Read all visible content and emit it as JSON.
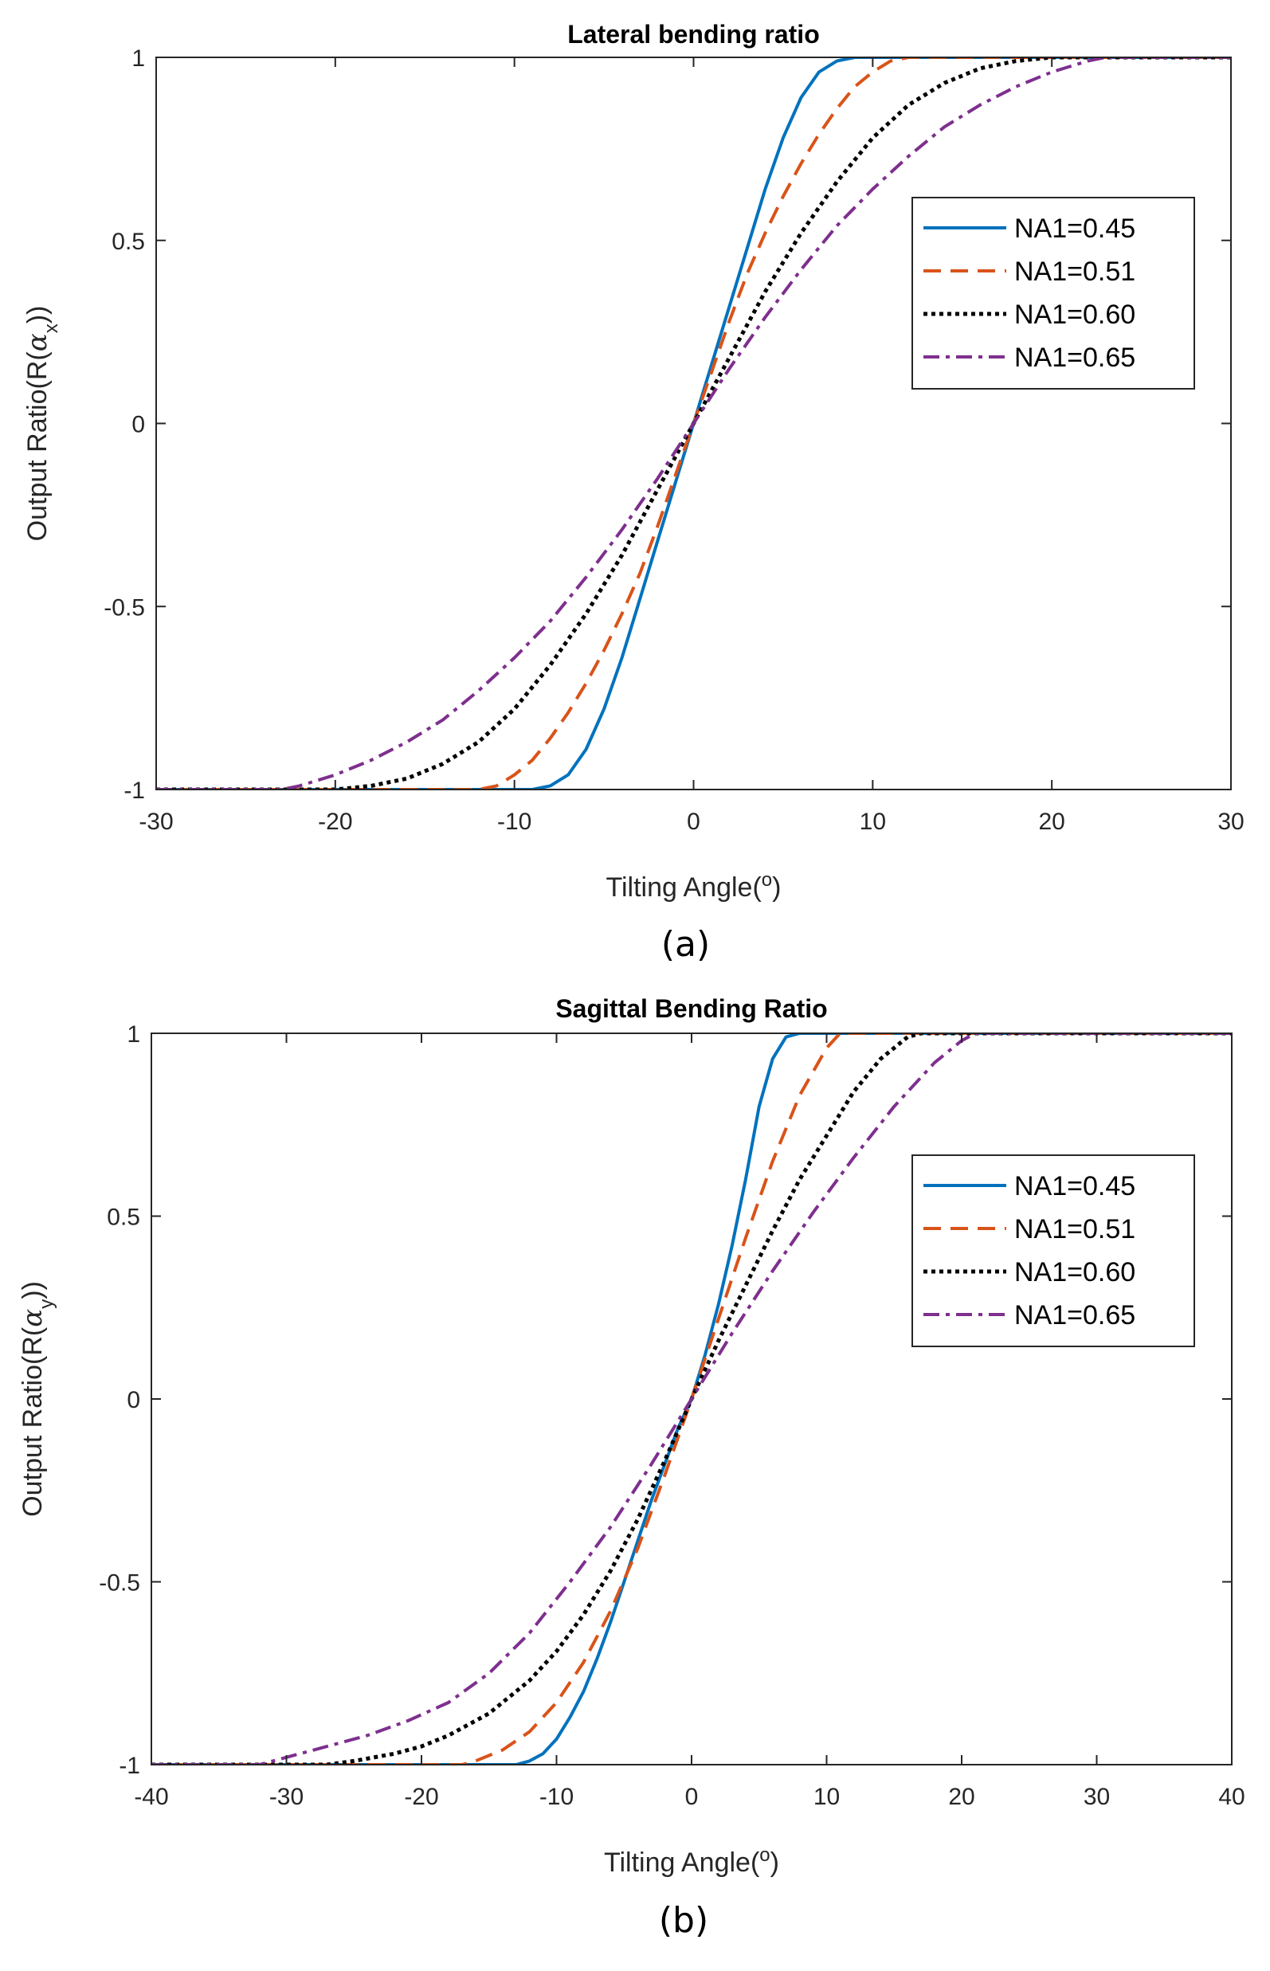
{
  "colors": {
    "na045": "#0072BD",
    "na051": "#D95319",
    "na060": "#000000",
    "na065": "#7E2F8E",
    "axis": "#262626",
    "text": "#262626"
  },
  "chart_data": [
    {
      "type": "line",
      "title": "Lateral bending ratio",
      "xlabel": "Tilting Angle(",
      "xlabel_sup": "o",
      "xlabel_end": ")",
      "ylabel": "Output Ratio(R(",
      "ylabel_greek": "α",
      "ylabel_sub": "x",
      "ylabel_end": "))",
      "caption": "(a)",
      "xlim": [
        -30,
        30
      ],
      "ylim": [
        -1,
        1
      ],
      "xticks": [
        -30,
        -20,
        -10,
        0,
        10,
        20,
        30
      ],
      "yticks": [
        -1,
        -0.5,
        0,
        0.5,
        1
      ],
      "legend_position": "upper-right",
      "series": [
        {
          "name": "NA1=0.45",
          "style": "solid",
          "color_key": "na045",
          "x": [
            -30,
            -9,
            -8,
            -7,
            -6,
            -5,
            -4,
            -3,
            -2,
            -1,
            0,
            1,
            2,
            3,
            4,
            5,
            6,
            7,
            8,
            9,
            30
          ],
          "y": [
            -1,
            -1,
            -0.99,
            -0.96,
            -0.89,
            -0.78,
            -0.64,
            -0.48,
            -0.32,
            -0.16,
            0,
            0.16,
            0.32,
            0.48,
            0.64,
            0.78,
            0.89,
            0.96,
            0.99,
            1,
            1
          ]
        },
        {
          "name": "NA1=0.51",
          "style": "dashed",
          "color_key": "na051",
          "x": [
            -30,
            -12,
            -11,
            -10,
            -9,
            -8,
            -7,
            -6,
            -5,
            -4,
            -3,
            -2,
            -1,
            0,
            1,
            2,
            3,
            4,
            5,
            6,
            7,
            8,
            9,
            10,
            11,
            12,
            30
          ],
          "y": [
            -1,
            -1,
            -0.99,
            -0.96,
            -0.92,
            -0.86,
            -0.79,
            -0.71,
            -0.62,
            -0.52,
            -0.41,
            -0.28,
            -0.14,
            0,
            0.14,
            0.28,
            0.41,
            0.52,
            0.62,
            0.71,
            0.79,
            0.86,
            0.92,
            0.96,
            0.99,
            1,
            1
          ]
        },
        {
          "name": "NA1=0.60",
          "style": "dotted",
          "color_key": "na060",
          "x": [
            -30,
            -20,
            -18,
            -16,
            -14,
            -12,
            -10,
            -8,
            -6,
            -4,
            -2,
            0,
            2,
            4,
            6,
            8,
            10,
            12,
            14,
            16,
            18,
            20,
            30
          ],
          "y": [
            -1,
            -1,
            -0.99,
            -0.97,
            -0.93,
            -0.87,
            -0.78,
            -0.66,
            -0.52,
            -0.36,
            -0.18,
            0,
            0.18,
            0.36,
            0.52,
            0.66,
            0.78,
            0.87,
            0.93,
            0.97,
            0.99,
            1,
            1
          ]
        },
        {
          "name": "NA1=0.65",
          "style": "dashdot",
          "color_key": "na065",
          "x": [
            -30,
            -23,
            -22,
            -20,
            -18,
            -16,
            -14,
            -12,
            -10,
            -8,
            -6,
            -4,
            -2,
            0,
            2,
            4,
            6,
            8,
            10,
            12,
            14,
            16,
            18,
            20,
            22,
            23,
            30
          ],
          "y": [
            -1,
            -1,
            -0.99,
            -0.96,
            -0.92,
            -0.87,
            -0.81,
            -0.73,
            -0.64,
            -0.54,
            -0.42,
            -0.29,
            -0.15,
            0,
            0.15,
            0.29,
            0.42,
            0.54,
            0.64,
            0.73,
            0.81,
            0.87,
            0.92,
            0.96,
            0.99,
            1,
            1
          ]
        }
      ]
    },
    {
      "type": "line",
      "title": "Sagittal Bending Ratio",
      "xlabel": "Tilting Angle(",
      "xlabel_sup": "o",
      "xlabel_end": ")",
      "ylabel": "Output Ratio(R(",
      "ylabel_greek": "α",
      "ylabel_sub": "y",
      "ylabel_end": "))",
      "caption": "(b)",
      "xlim": [
        -40,
        40
      ],
      "ylim": [
        -1,
        1
      ],
      "xticks": [
        -40,
        -30,
        -20,
        -10,
        0,
        10,
        20,
        30,
        40
      ],
      "yticks": [
        -1,
        -0.5,
        0,
        0.5,
        1
      ],
      "legend_position": "upper-right",
      "series": [
        {
          "name": "NA1=0.45",
          "style": "solid",
          "color_key": "na045",
          "x": [
            -40,
            -13,
            -12,
            -11,
            -10,
            -9,
            -8,
            -7,
            -6,
            -5,
            -4,
            -3,
            -2,
            -1,
            0,
            1,
            2,
            3,
            4,
            5,
            6,
            7,
            8,
            40
          ],
          "y": [
            -1,
            -1,
            -0.99,
            -0.97,
            -0.93,
            -0.87,
            -0.8,
            -0.71,
            -0.61,
            -0.5,
            -0.39,
            -0.28,
            -0.18,
            -0.08,
            0,
            0.12,
            0.26,
            0.42,
            0.6,
            0.8,
            0.93,
            0.99,
            1,
            1
          ]
        },
        {
          "name": "NA1=0.51",
          "style": "dashed",
          "color_key": "na051",
          "x": [
            -40,
            -17,
            -16,
            -14,
            -12,
            -10,
            -8,
            -6,
            -4,
            -2,
            0,
            2,
            4,
            6,
            8,
            10,
            11,
            40
          ],
          "y": [
            -1,
            -1,
            -0.99,
            -0.96,
            -0.91,
            -0.83,
            -0.72,
            -0.58,
            -0.41,
            -0.21,
            0,
            0.22,
            0.44,
            0.65,
            0.83,
            0.96,
            1,
            1
          ]
        },
        {
          "name": "NA1=0.60",
          "style": "dotted",
          "color_key": "na060",
          "x": [
            -40,
            -27,
            -25,
            -22,
            -20,
            -18,
            -15,
            -12,
            -10,
            -8,
            -6,
            -4,
            -2,
            0,
            2,
            4,
            6,
            8,
            10,
            12,
            14,
            16,
            17,
            40
          ],
          "y": [
            -1,
            -1,
            -0.99,
            -0.97,
            -0.95,
            -0.92,
            -0.86,
            -0.77,
            -0.69,
            -0.59,
            -0.47,
            -0.33,
            -0.17,
            0,
            0.16,
            0.31,
            0.46,
            0.6,
            0.72,
            0.84,
            0.93,
            0.99,
            1,
            1
          ]
        },
        {
          "name": "NA1=0.65",
          "style": "dashdot",
          "color_key": "na065",
          "x": [
            -40,
            -32,
            -30,
            -27,
            -24,
            -21,
            -18,
            -15,
            -12,
            -9,
            -6,
            -3,
            0,
            3,
            6,
            9,
            12,
            15,
            18,
            20,
            21,
            40
          ],
          "y": [
            -1,
            -1,
            -0.98,
            -0.95,
            -0.92,
            -0.88,
            -0.83,
            -0.75,
            -0.64,
            -0.5,
            -0.35,
            -0.18,
            0,
            0.18,
            0.35,
            0.51,
            0.66,
            0.8,
            0.92,
            0.98,
            1,
            1
          ]
        }
      ]
    }
  ]
}
